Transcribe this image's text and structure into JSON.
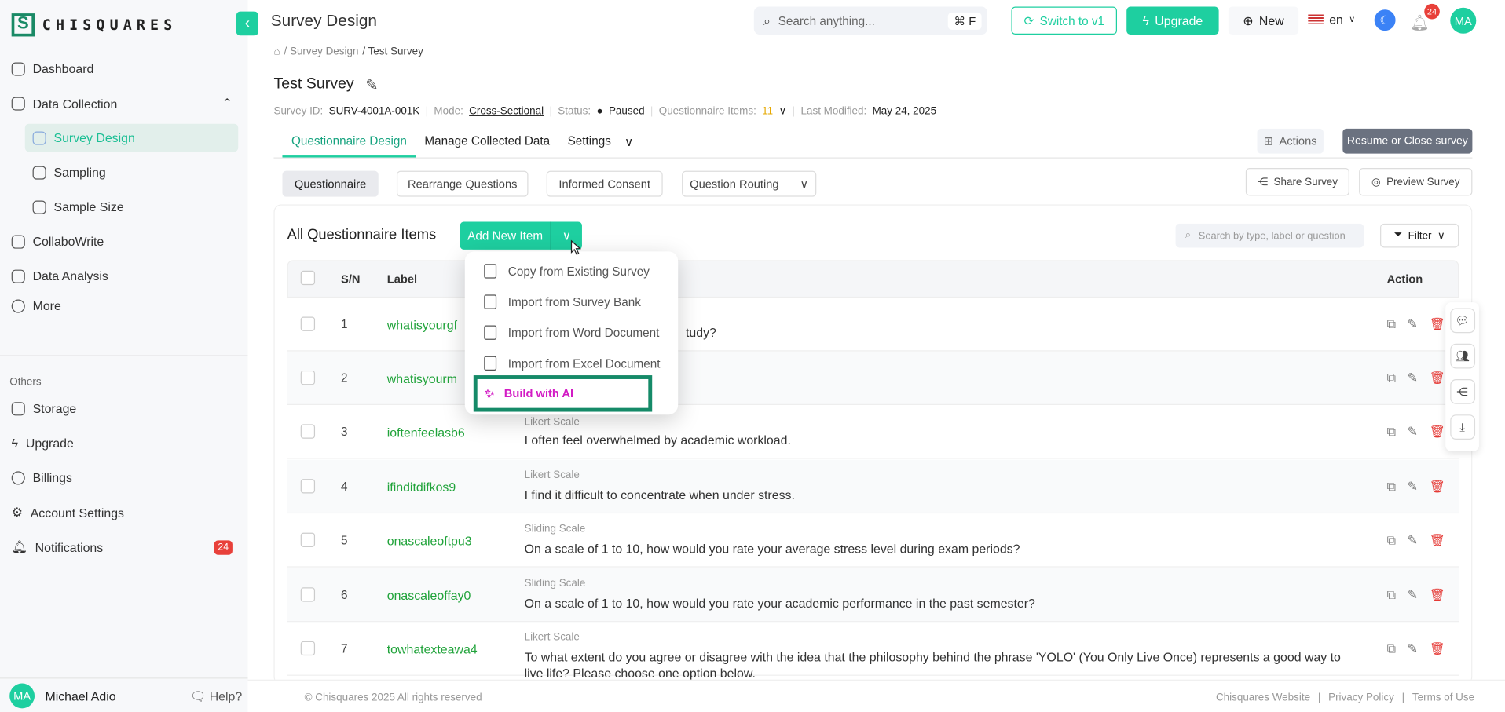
{
  "brand": {
    "name": "CHISQUARES",
    "accent": "#1ecfa0"
  },
  "sidebar": {
    "items": [
      {
        "label": "Dashboard",
        "icon": "home-icon"
      },
      {
        "label": "Data Collection",
        "icon": "data-collection-icon"
      },
      {
        "label": "Survey Design",
        "icon": "clipboard-icon"
      },
      {
        "label": "Sampling",
        "icon": "funnel-icon"
      },
      {
        "label": "Sample Size",
        "icon": "list-icon"
      },
      {
        "label": "CollaboWrite",
        "icon": "chart-icon"
      },
      {
        "label": "Data Analysis",
        "icon": "grid-icon"
      },
      {
        "label": "More",
        "icon": "more-icon"
      }
    ],
    "others_heading": "Others",
    "others": [
      {
        "label": "Storage"
      },
      {
        "label": "Upgrade"
      },
      {
        "label": "Billings"
      },
      {
        "label": "Account Settings"
      },
      {
        "label": "Notifications",
        "badge": "24"
      }
    ],
    "user": {
      "initials": "MA",
      "name": "Michael Adio"
    },
    "help": "Help?"
  },
  "header": {
    "title": "Survey Design",
    "search_placeholder": "Search anything...",
    "shortcut": "⌘ F",
    "switch": "Switch to v1",
    "upgrade": "Upgrade",
    "new": "New",
    "lang": "en",
    "notif_count": "24",
    "avatar": "MA"
  },
  "breadcrumb": {
    "sep1": "/ Survey Design",
    "current": "/ Test Survey"
  },
  "survey": {
    "title": "Test Survey",
    "id_label": "Survey ID:",
    "id": "SURV-4001A-001K",
    "mode_label": "Mode:",
    "mode": "Cross-Sectional",
    "status_label": "Status:",
    "status": "Paused",
    "items_label": "Questionnaire Items:",
    "items": "11",
    "modified_label": "Last Modified:",
    "modified": "May 24, 2025"
  },
  "tabs": [
    "Questionnaire Design",
    "Manage Collected Data",
    "Settings"
  ],
  "actions": "Actions",
  "resume": "Resume or Close survey",
  "subtabs": [
    "Questionnaire",
    "Rearrange Questions",
    "Informed Consent",
    "Question Routing"
  ],
  "share": "Share Survey",
  "preview": "Preview Survey",
  "card": {
    "title": "All Questionnaire Items",
    "add": "Add New Item",
    "search_placeholder": "Search by type, label or question",
    "filter": "Filter"
  },
  "table": {
    "headers": [
      "S/N",
      "Label",
      "Action"
    ],
    "rows": [
      {
        "sn": "1",
        "label": "whatisyourgf",
        "type": "",
        "q": "tudy?"
      },
      {
        "sn": "2",
        "label": "whatisyourm",
        "type": "",
        "q": ""
      },
      {
        "sn": "3",
        "label": "ioftenfeelasb6",
        "type": "Likert Scale",
        "q": "I often feel overwhelmed by academic workload."
      },
      {
        "sn": "4",
        "label": "ifinditdifkos9",
        "type": "Likert Scale",
        "q": "I find it difficult to concentrate when under stress."
      },
      {
        "sn": "5",
        "label": "onascaleoftpu3",
        "type": "Sliding Scale",
        "q": "On a scale of 1 to 10, how would you rate your average stress level during exam periods?"
      },
      {
        "sn": "6",
        "label": "onascaleoffay0",
        "type": "Sliding Scale",
        "q": "On a scale of 1 to 10, how would you rate your academic performance in the past semester?"
      },
      {
        "sn": "7",
        "label": "towhatexteawa4",
        "type": "Likert Scale",
        "q": "To what extent do you agree or disagree with the idea that the philosophy behind the phrase 'YOLO' (You Only Live Once) represents a good way to live life? Please choose one option below."
      }
    ]
  },
  "menu": [
    "Copy from Existing Survey",
    "Import from Survey Bank",
    "Import from Word Document",
    "Import from Excel Document",
    "Build with AI"
  ],
  "footer": {
    "copy": "© Chisquares 2025 All rights reserved",
    "links": [
      "Chisquares Website",
      "Privacy Policy",
      "Terms of Use"
    ]
  }
}
